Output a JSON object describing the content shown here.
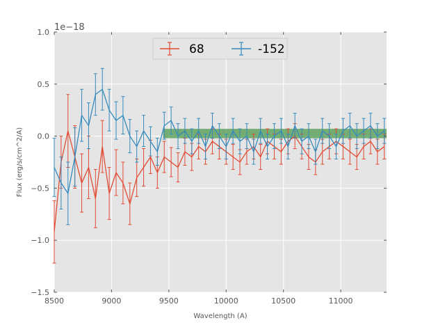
{
  "chart_data": {
    "type": "line",
    "title": "",
    "xlabel": "Wavelength (A)",
    "ylabel": "Flux (erg/s/cm^2/A)",
    "y_offset_label": "1e−18",
    "xlim": [
      8500,
      11400
    ],
    "ylim": [
      -1.5,
      1.0
    ],
    "xticks": [
      8500,
      9000,
      9500,
      10000,
      10500,
      11000
    ],
    "xtick_labels": [
      "8500",
      "9000",
      "9500",
      "10000",
      "10500",
      "11000"
    ],
    "yticks": [
      -1.5,
      -1.0,
      -0.5,
      0.0,
      0.5,
      1.0
    ],
    "ytick_labels": [
      "−1.5",
      "−1.0",
      "−0.5",
      "0.0",
      "0.5",
      "1.0"
    ],
    "grid": true,
    "legend_position": "top-center",
    "band": {
      "x_start": 9450,
      "x_end": 11400,
      "y_low": -0.02,
      "y_high": 0.07,
      "color": "#4c9a4c"
    },
    "series": [
      {
        "name": "68",
        "color": "#e24a33",
        "x": [
          8500,
          8560,
          8620,
          8680,
          8740,
          8800,
          8860,
          8920,
          8980,
          9040,
          9100,
          9160,
          9220,
          9280,
          9340,
          9400,
          9460,
          9520,
          9580,
          9640,
          9700,
          9760,
          9820,
          9880,
          9940,
          10000,
          10060,
          10120,
          10180,
          10240,
          10300,
          10360,
          10420,
          10480,
          10540,
          10600,
          10660,
          10720,
          10780,
          10840,
          10900,
          10960,
          11020,
          11080,
          11140,
          11200,
          11260,
          11320,
          11380
        ],
        "y": [
          -0.92,
          -0.25,
          0.05,
          -0.2,
          -0.45,
          -0.3,
          -0.6,
          -0.1,
          -0.55,
          -0.35,
          -0.45,
          -0.65,
          -0.4,
          -0.3,
          -0.2,
          -0.35,
          -0.2,
          -0.25,
          -0.3,
          -0.15,
          -0.2,
          -0.1,
          -0.15,
          -0.05,
          -0.1,
          -0.15,
          -0.2,
          -0.25,
          -0.15,
          -0.1,
          -0.2,
          -0.05,
          -0.1,
          -0.15,
          -0.05,
          0.0,
          -0.1,
          -0.2,
          -0.25,
          -0.15,
          -0.1,
          -0.05,
          -0.1,
          -0.15,
          -0.2,
          -0.1,
          -0.05,
          -0.15,
          -0.1
        ],
        "err": [
          0.3,
          0.25,
          0.35,
          0.3,
          0.28,
          0.3,
          0.28,
          0.25,
          0.25,
          0.22,
          0.2,
          0.2,
          0.18,
          0.18,
          0.16,
          0.15,
          0.15,
          0.14,
          0.14,
          0.13,
          0.13,
          0.12,
          0.12,
          0.12,
          0.12,
          0.12,
          0.12,
          0.12,
          0.12,
          0.12,
          0.12,
          0.12,
          0.12,
          0.12,
          0.12,
          0.12,
          0.12,
          0.12,
          0.12,
          0.12,
          0.12,
          0.12,
          0.12,
          0.12,
          0.12,
          0.12,
          0.12,
          0.12,
          0.12
        ]
      },
      {
        "name": "-152",
        "color": "#348abd",
        "x": [
          8500,
          8560,
          8620,
          8680,
          8740,
          8800,
          8860,
          8920,
          8980,
          9040,
          9100,
          9160,
          9220,
          9280,
          9340,
          9400,
          9460,
          9520,
          9580,
          9640,
          9700,
          9760,
          9820,
          9880,
          9940,
          10000,
          10060,
          10120,
          10180,
          10240,
          10300,
          10360,
          10420,
          10480,
          10540,
          10600,
          10660,
          10720,
          10780,
          10840,
          10900,
          10960,
          11020,
          11080,
          11140,
          11200,
          11260,
          11320,
          11380
        ],
        "y": [
          -0.3,
          -0.45,
          -0.55,
          -0.2,
          0.2,
          0.1,
          0.4,
          0.45,
          0.25,
          0.15,
          0.2,
          0.0,
          -0.1,
          0.05,
          -0.05,
          -0.15,
          0.1,
          0.15,
          0.0,
          0.05,
          -0.05,
          0.05,
          -0.1,
          0.1,
          0.0,
          -0.1,
          0.05,
          -0.05,
          0.0,
          -0.15,
          0.05,
          -0.1,
          0.0,
          0.05,
          -0.1,
          0.1,
          -0.05,
          0.0,
          -0.15,
          0.05,
          0.0,
          -0.1,
          0.05,
          0.1,
          0.0,
          0.05,
          0.1,
          0.0,
          0.05
        ],
        "err": [
          0.28,
          0.25,
          0.3,
          0.28,
          0.25,
          0.22,
          0.2,
          0.2,
          0.2,
          0.18,
          0.18,
          0.16,
          0.15,
          0.15,
          0.14,
          0.13,
          0.13,
          0.13,
          0.12,
          0.12,
          0.12,
          0.12,
          0.12,
          0.12,
          0.12,
          0.12,
          0.12,
          0.12,
          0.12,
          0.12,
          0.12,
          0.12,
          0.12,
          0.12,
          0.12,
          0.12,
          0.12,
          0.12,
          0.12,
          0.12,
          0.12,
          0.12,
          0.12,
          0.12,
          0.12,
          0.12,
          0.12,
          0.12,
          0.12
        ]
      }
    ]
  }
}
